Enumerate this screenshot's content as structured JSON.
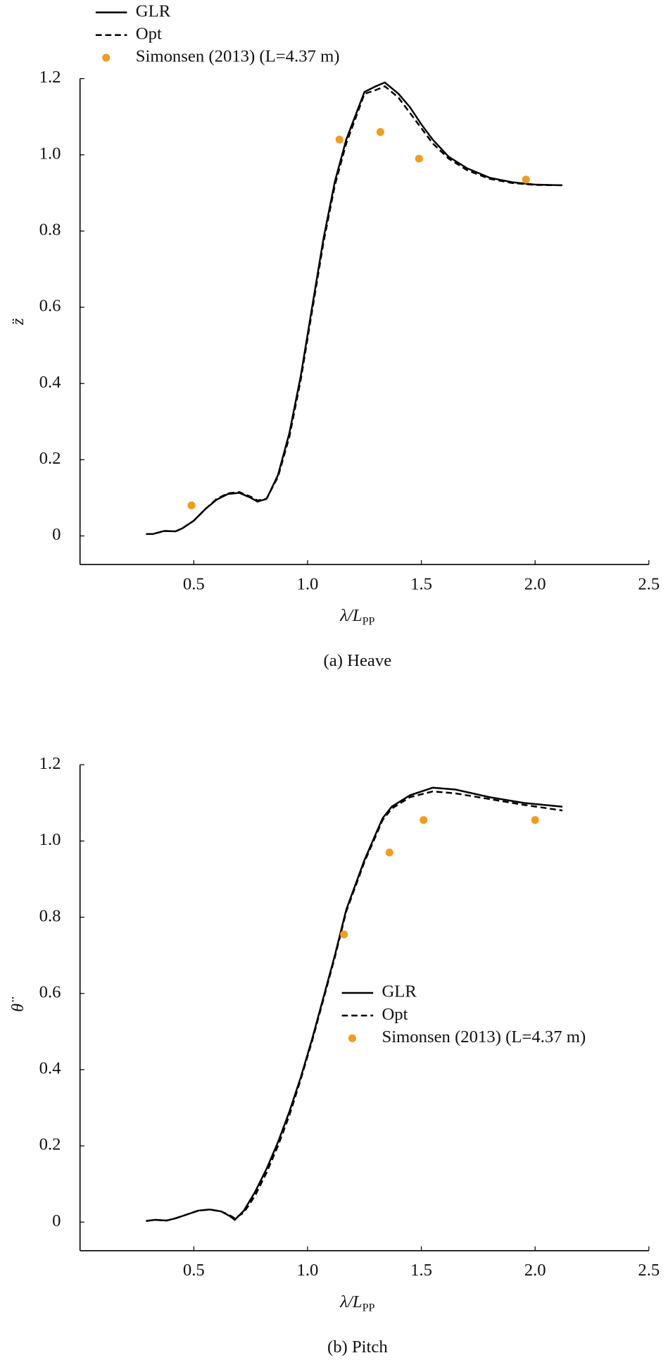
{
  "chart_data": [
    {
      "type": "line",
      "caption": "(a) Heave",
      "ylabel": "z̈",
      "xlabel": {
        "main": "λ/L",
        "sub": "PP"
      },
      "xlim": [
        0,
        2.5
      ],
      "ylim": [
        -0.075,
        1.2
      ],
      "xticks": [
        0.5,
        {
          "value": 1.0,
          "label": "1.0"
        },
        1.5,
        {
          "value": 2.0,
          "label": "2.0"
        },
        2.5
      ],
      "yticks": [
        0,
        0.2,
        0.4,
        0.6,
        0.8,
        {
          "value": 1.0,
          "label": "1.0"
        },
        1.2
      ],
      "legend": "upper left",
      "series": [
        {
          "name": "GLR",
          "color": "#000000",
          "style": "solid",
          "x": [
            0.29,
            0.32,
            0.37,
            0.42,
            0.45,
            0.5,
            0.55,
            0.6,
            0.65,
            0.7,
            0.75,
            0.78,
            0.82,
            0.87,
            0.92,
            0.97,
            1.02,
            1.07,
            1.12,
            1.17,
            1.25,
            1.3,
            1.34,
            1.4,
            1.45,
            1.5,
            1.55,
            1.62,
            1.7,
            1.8,
            1.9,
            2.0,
            2.12
          ],
          "values": [
            0.005,
            0.005,
            0.013,
            0.012,
            0.02,
            0.04,
            0.07,
            0.095,
            0.11,
            0.113,
            0.1,
            0.09,
            0.097,
            0.16,
            0.27,
            0.42,
            0.6,
            0.78,
            0.93,
            1.04,
            1.165,
            1.18,
            1.19,
            1.16,
            1.125,
            1.08,
            1.04,
            0.995,
            0.965,
            0.94,
            0.928,
            0.922,
            0.92
          ]
        },
        {
          "name": "Opt",
          "color": "#000000",
          "style": "dashed",
          "x": [
            0.29,
            0.32,
            0.37,
            0.42,
            0.45,
            0.5,
            0.55,
            0.6,
            0.65,
            0.7,
            0.75,
            0.78,
            0.82,
            0.87,
            0.92,
            0.97,
            1.02,
            1.07,
            1.12,
            1.17,
            1.25,
            1.3,
            1.34,
            1.4,
            1.45,
            1.5,
            1.55,
            1.62,
            1.7,
            1.8,
            1.9,
            2.0,
            2.12
          ],
          "values": [
            0.005,
            0.005,
            0.013,
            0.012,
            0.02,
            0.04,
            0.07,
            0.097,
            0.112,
            0.115,
            0.103,
            0.093,
            0.098,
            0.155,
            0.26,
            0.41,
            0.59,
            0.77,
            0.92,
            1.03,
            1.16,
            1.17,
            1.18,
            1.15,
            1.11,
            1.07,
            1.03,
            0.99,
            0.96,
            0.937,
            0.926,
            0.921,
            0.92
          ]
        },
        {
          "name": "Simonsen (2013) (L=4.37 m)",
          "color": "#f39c1e",
          "style": "marker",
          "x": [
            0.49,
            1.14,
            1.32,
            1.49,
            1.96
          ],
          "values": [
            0.08,
            1.04,
            1.06,
            0.99,
            0.935
          ]
        }
      ]
    },
    {
      "type": "line",
      "caption": "(b) Pitch",
      "ylabel": "θ̈",
      "xlabel": {
        "main": "λ/L",
        "sub": "PP"
      },
      "xlim": [
        0,
        2.5
      ],
      "ylim": [
        -0.075,
        1.2
      ],
      "xticks": [
        0.5,
        {
          "value": 1.0,
          "label": "1.0"
        },
        1.5,
        {
          "value": 2.0,
          "label": "2.0"
        },
        2.5
      ],
      "yticks": [
        0,
        0.2,
        0.4,
        0.6,
        0.8,
        {
          "value": 1.0,
          "label": "1.0"
        },
        1.2
      ],
      "legend": "center right",
      "series": [
        {
          "name": "GLR",
          "color": "#000000",
          "style": "solid",
          "x": [
            0.29,
            0.33,
            0.38,
            0.42,
            0.47,
            0.52,
            0.57,
            0.62,
            0.66,
            0.68,
            0.72,
            0.77,
            0.82,
            0.87,
            0.92,
            0.97,
            1.02,
            1.07,
            1.12,
            1.17,
            1.25,
            1.33,
            1.37,
            1.45,
            1.55,
            1.65,
            1.8,
            1.95,
            2.12
          ],
          "values": [
            0.003,
            0.006,
            0.004,
            0.01,
            0.02,
            0.03,
            0.033,
            0.028,
            0.015,
            0.006,
            0.03,
            0.08,
            0.14,
            0.21,
            0.29,
            0.38,
            0.48,
            0.59,
            0.7,
            0.82,
            0.95,
            1.06,
            1.09,
            1.12,
            1.14,
            1.135,
            1.115,
            1.1,
            1.09
          ]
        },
        {
          "name": "Opt",
          "color": "#000000",
          "style": "dashed",
          "x": [
            0.29,
            0.33,
            0.38,
            0.42,
            0.47,
            0.52,
            0.57,
            0.62,
            0.66,
            0.68,
            0.72,
            0.77,
            0.82,
            0.87,
            0.92,
            0.97,
            1.02,
            1.07,
            1.12,
            1.17,
            1.25,
            1.33,
            1.37,
            1.45,
            1.55,
            1.65,
            1.8,
            1.95,
            2.12
          ],
          "values": [
            0.003,
            0.006,
            0.004,
            0.01,
            0.02,
            0.03,
            0.033,
            0.028,
            0.017,
            0.01,
            0.025,
            0.07,
            0.13,
            0.2,
            0.28,
            0.375,
            0.475,
            0.585,
            0.695,
            0.815,
            0.945,
            1.055,
            1.085,
            1.115,
            1.13,
            1.125,
            1.11,
            1.095,
            1.08
          ]
        },
        {
          "name": "Simonsen (2013) (L=4.37 m)",
          "color": "#f39c1e",
          "style": "marker",
          "x": [
            1.16,
            1.36,
            1.51,
            2.0
          ],
          "values": [
            0.755,
            0.97,
            1.055,
            1.055
          ]
        }
      ]
    }
  ]
}
